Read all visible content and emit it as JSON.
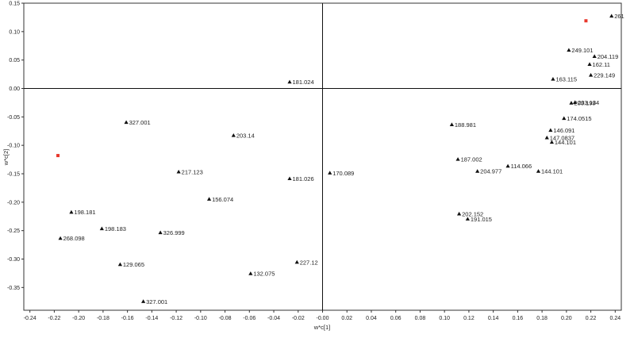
{
  "chart_data": {
    "type": "scatter",
    "xlabel": "w*c[1]",
    "ylabel": "w*c[2]",
    "xlim": [
      -0.245,
      0.245
    ],
    "ylim": [
      -0.39,
      0.15
    ],
    "x_ticks": [
      "-0.24",
      "-0.22",
      "-0.20",
      "-0.18",
      "-0.16",
      "-0.14",
      "-0.12",
      "-0.10",
      "-0.08",
      "-0.06",
      "-0.04",
      "-0.02",
      "-0.00",
      "0.02",
      "0.04",
      "0.06",
      "0.08",
      "0.10",
      "0.12",
      "0.14",
      "0.16",
      "0.18",
      "0.20",
      "0.22",
      "0.24"
    ],
    "y_ticks": [
      "0.15",
      "0.10",
      "0.05",
      "0.00",
      "-0.05",
      "-0.10",
      "-0.15",
      "-0.20",
      "-0.25",
      "-0.30",
      "-0.35"
    ],
    "grid": false,
    "reference_lines": {
      "x": 0,
      "y": 0
    },
    "marker_color": "#111111",
    "highlight_color": "#e8372c",
    "points": [
      {
        "label": "261",
        "x": 0.237,
        "y": 0.127
      },
      {
        "label": "249.101",
        "x": 0.202,
        "y": 0.067
      },
      {
        "label": "204.119",
        "x": 0.223,
        "y": 0.056
      },
      {
        "label": "162.11",
        "x": 0.219,
        "y": 0.042
      },
      {
        "label": "229.149",
        "x": 0.22,
        "y": 0.023
      },
      {
        "label": "163.115",
        "x": 0.189,
        "y": 0.016
      },
      {
        "label": "181.024",
        "x": -0.027,
        "y": 0.011
      },
      {
        "label": "203.134",
        "x": 0.207,
        "y": -0.025
      },
      {
        "label": "203.199",
        "x": 0.204,
        "y": -0.026
      },
      {
        "label": "188.981",
        "x": 0.106,
        "y": -0.064
      },
      {
        "label": "174.0515",
        "x": 0.198,
        "y": -0.053
      },
      {
        "label": "327.001",
        "x": -0.161,
        "y": -0.06
      },
      {
        "label": "203.14",
        "x": -0.073,
        "y": -0.083
      },
      {
        "label": "146.091",
        "x": 0.187,
        "y": -0.074
      },
      {
        "label": "147.0837",
        "x": 0.184,
        "y": -0.087
      },
      {
        "label": "144.101",
        "x": 0.188,
        "y": -0.095
      },
      {
        "label": "187.002",
        "x": 0.111,
        "y": -0.125
      },
      {
        "label": "114.066",
        "x": 0.152,
        "y": -0.137
      },
      {
        "label": "204.977",
        "x": 0.127,
        "y": -0.146
      },
      {
        "label": "144.101",
        "x": 0.177,
        "y": -0.146
      },
      {
        "label": "170.089",
        "x": 0.006,
        "y": -0.149
      },
      {
        "label": "217.123",
        "x": -0.118,
        "y": -0.147
      },
      {
        "label": "181.026",
        "x": -0.027,
        "y": -0.159
      },
      {
        "label": "156.074",
        "x": -0.093,
        "y": -0.195
      },
      {
        "label": "198.181",
        "x": -0.206,
        "y": -0.218
      },
      {
        "label": "202.152",
        "x": 0.112,
        "y": -0.221
      },
      {
        "label": "191.015",
        "x": 0.119,
        "y": -0.23
      },
      {
        "label": "198.183",
        "x": -0.181,
        "y": -0.247
      },
      {
        "label": "326.999",
        "x": -0.133,
        "y": -0.254
      },
      {
        "label": "268.098",
        "x": -0.215,
        "y": -0.264
      },
      {
        "label": "129.065",
        "x": -0.166,
        "y": -0.31
      },
      {
        "label": "227.12",
        "x": -0.021,
        "y": -0.306
      },
      {
        "label": "132.075",
        "x": -0.059,
        "y": -0.326
      },
      {
        "label": "327.001",
        "x": -0.147,
        "y": -0.375
      }
    ],
    "highlight_points": [
      {
        "x": 0.216,
        "y": 0.119
      },
      {
        "x": -0.217,
        "y": -0.118
      }
    ]
  }
}
